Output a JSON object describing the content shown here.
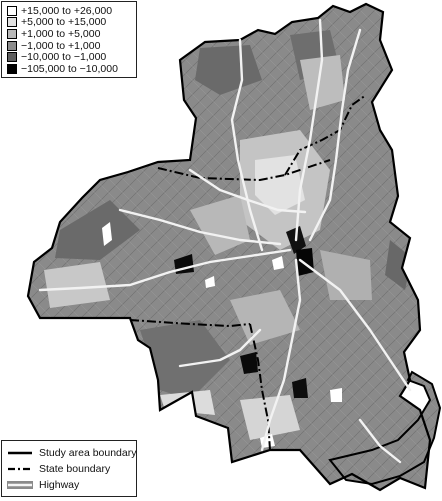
{
  "legend_categories": [
    {
      "label": "+15,000 to +26,000",
      "color": "#ffffff"
    },
    {
      "label": "+5,000 to +15,000",
      "color": "#e2e2e2"
    },
    {
      "label": "+1,000 to +5,000",
      "color": "#b8b8b8"
    },
    {
      "label": "−1,000 to +1,000",
      "color": "#8c8c8c"
    },
    {
      "label": "−10,000 to −1,000",
      "color": "#5e5e5e"
    },
    {
      "label": "−105,000 to −10,000",
      "color": "#000000"
    }
  ],
  "legend_lines": [
    {
      "label": "Study area boundary",
      "style": "solid-black"
    },
    {
      "label": "State boundary",
      "style": "dash-dot-black"
    },
    {
      "label": "Highway",
      "style": "solid-white"
    }
  ],
  "colors": {
    "region_base": "#8a8a8a",
    "boundary": "#000000",
    "highway": "#f2f2f2",
    "water": "#ffffff"
  }
}
